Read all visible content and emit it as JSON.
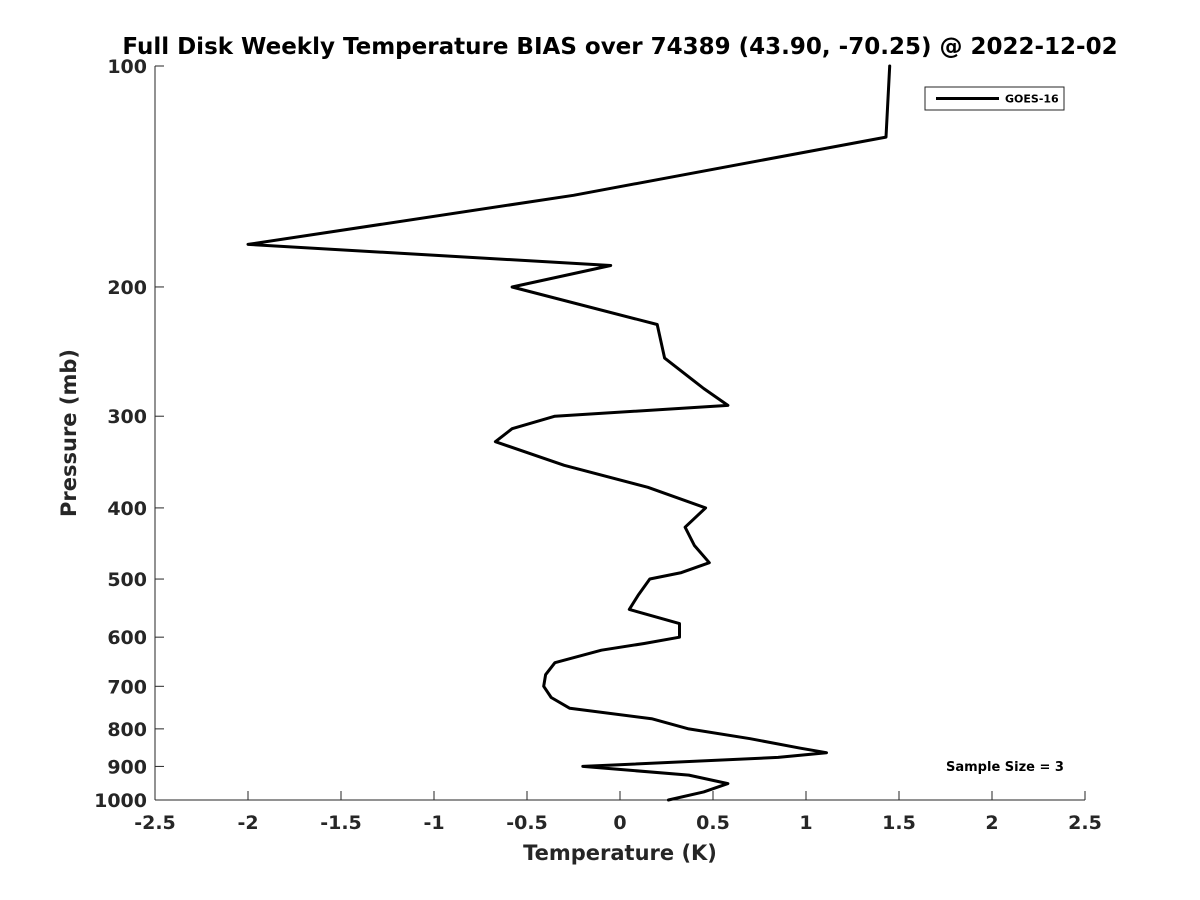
{
  "chart_data": {
    "type": "line",
    "title": "Full Disk Weekly Temperature BIAS over 74389 (43.90, -70.25) @ 2022-12-02",
    "xlabel": "Temperature (K)",
    "ylabel": "Pressure (mb)",
    "xlim": [
      -2.5,
      2.5
    ],
    "ylim": [
      100,
      1000
    ],
    "y_scale": "log",
    "y_reversed": true,
    "x_ticks": [
      -2.5,
      -2,
      -1.5,
      -1,
      -0.5,
      0,
      0.5,
      1,
      1.5,
      2,
      2.5
    ],
    "x_tick_labels": [
      "-2.5",
      "-2",
      "-1.5",
      "-1",
      "-0.5",
      "0",
      "0.5",
      "1",
      "1.5",
      "2",
      "2.5"
    ],
    "y_ticks": [
      100,
      200,
      300,
      400,
      500,
      600,
      700,
      800,
      900,
      1000
    ],
    "y_tick_labels": [
      "100",
      "200",
      "300",
      "400",
      "500",
      "600",
      "700",
      "800",
      "900",
      "1000"
    ],
    "grid": false,
    "legend_position": "top-right",
    "annotation": "Sample Size = 3",
    "series": [
      {
        "name": "GOES-16",
        "color": "#000000",
        "points": [
          {
            "x": 1.45,
            "y": 100
          },
          {
            "x": 1.43,
            "y": 125
          },
          {
            "x": -0.25,
            "y": 150
          },
          {
            "x": -2.0,
            "y": 175
          },
          {
            "x": -0.05,
            "y": 187
          },
          {
            "x": -0.58,
            "y": 200
          },
          {
            "x": 0.2,
            "y": 225
          },
          {
            "x": 0.24,
            "y": 250
          },
          {
            "x": 0.45,
            "y": 275
          },
          {
            "x": 0.58,
            "y": 290
          },
          {
            "x": -0.35,
            "y": 300
          },
          {
            "x": -0.58,
            "y": 312
          },
          {
            "x": -0.67,
            "y": 325
          },
          {
            "x": -0.3,
            "y": 350
          },
          {
            "x": 0.15,
            "y": 375
          },
          {
            "x": 0.46,
            "y": 400
          },
          {
            "x": 0.35,
            "y": 425
          },
          {
            "x": 0.4,
            "y": 450
          },
          {
            "x": 0.48,
            "y": 475
          },
          {
            "x": 0.33,
            "y": 490
          },
          {
            "x": 0.16,
            "y": 500
          },
          {
            "x": 0.1,
            "y": 525
          },
          {
            "x": 0.05,
            "y": 550
          },
          {
            "x": 0.32,
            "y": 575
          },
          {
            "x": 0.32,
            "y": 600
          },
          {
            "x": 0.13,
            "y": 612
          },
          {
            "x": -0.1,
            "y": 625
          },
          {
            "x": -0.35,
            "y": 650
          },
          {
            "x": -0.4,
            "y": 675
          },
          {
            "x": -0.41,
            "y": 700
          },
          {
            "x": -0.37,
            "y": 725
          },
          {
            "x": -0.27,
            "y": 750
          },
          {
            "x": 0.17,
            "y": 775
          },
          {
            "x": 0.37,
            "y": 800
          },
          {
            "x": 0.7,
            "y": 825
          },
          {
            "x": 0.97,
            "y": 850
          },
          {
            "x": 1.11,
            "y": 862
          },
          {
            "x": 0.85,
            "y": 875
          },
          {
            "x": -0.2,
            "y": 900
          },
          {
            "x": 0.37,
            "y": 925
          },
          {
            "x": 0.58,
            "y": 950
          },
          {
            "x": 0.45,
            "y": 975
          },
          {
            "x": 0.26,
            "y": 1000
          }
        ]
      }
    ]
  }
}
